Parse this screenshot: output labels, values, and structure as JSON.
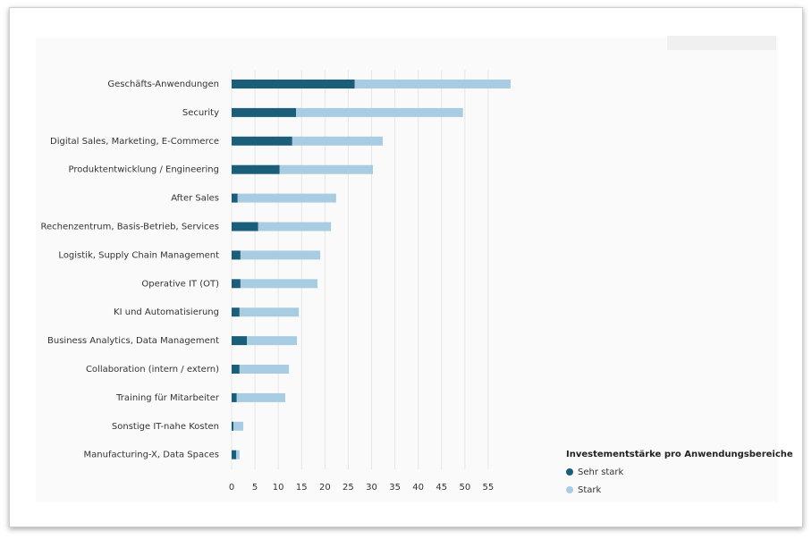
{
  "chart_data": {
    "type": "bar",
    "horizontal": true,
    "stacked": true,
    "categories": [
      "Geschäfts-Anwendungen",
      "Security",
      "Digital Sales, Marketing, E-Commerce",
      "Produktentwicklung / Engineering",
      "After Sales",
      "Rechenzentrum, Basis-Betrieb, Services",
      "Logistik, Supply Chain Management",
      "Operative IT (OT)",
      "KI und Automatisierung",
      "Business Analytics, Data Management",
      "Collaboration (intern / extern)",
      "Training für Mitarbeiter",
      "Sonstige IT-nahe Kosten",
      "Manufacturing-X, Data Spaces"
    ],
    "series": [
      {
        "name": "Sehr stark",
        "color": "#1b5e7a",
        "values": [
          26.4,
          13.8,
          13.0,
          10.3,
          1.3,
          5.7,
          1.9,
          1.9,
          1.7,
          3.3,
          1.7,
          1.1,
          0.4,
          1.0
        ]
      },
      {
        "name": "Stark",
        "color": "#a8cde2",
        "values": [
          33.4,
          35.8,
          19.4,
          20.0,
          21.1,
          15.6,
          17.1,
          16.5,
          12.7,
          10.7,
          10.6,
          10.4,
          2.1,
          0.7
        ]
      }
    ],
    "xlim": [
      0,
      60
    ],
    "xticks": [
      0,
      5,
      10,
      15,
      20,
      25,
      30,
      35,
      40,
      45,
      50,
      55
    ],
    "grid": true,
    "legend_title": "Investementstärke pro Anwendungsbereiche",
    "legend": "bottom-right"
  }
}
